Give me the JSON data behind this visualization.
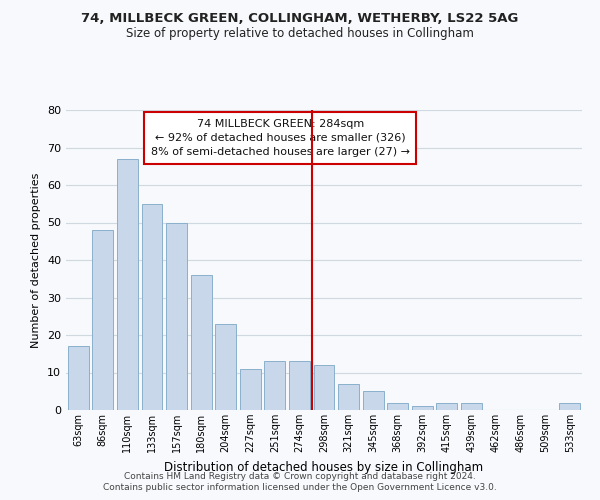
{
  "title1": "74, MILLBECK GREEN, COLLINGHAM, WETHERBY, LS22 5AG",
  "title2": "Size of property relative to detached houses in Collingham",
  "xlabel": "Distribution of detached houses by size in Collingham",
  "ylabel": "Number of detached properties",
  "bar_labels": [
    "63sqm",
    "86sqm",
    "110sqm",
    "133sqm",
    "157sqm",
    "180sqm",
    "204sqm",
    "227sqm",
    "251sqm",
    "274sqm",
    "298sqm",
    "321sqm",
    "345sqm",
    "368sqm",
    "392sqm",
    "415sqm",
    "439sqm",
    "462sqm",
    "486sqm",
    "509sqm",
    "533sqm"
  ],
  "bar_values": [
    17,
    48,
    67,
    55,
    50,
    36,
    23,
    11,
    13,
    13,
    12,
    7,
    5,
    2,
    1,
    2,
    2,
    0,
    0,
    0,
    2
  ],
  "bar_color": "#c8d8ea",
  "bar_edge_color": "#8ab0cc",
  "ref_line_x_label": "298sqm",
  "ref_line_color": "#cc0000",
  "annotation_title": "74 MILLBECK GREEN: 284sqm",
  "annotation_line1": "← 92% of detached houses are smaller (326)",
  "annotation_line2": "8% of semi-detached houses are larger (27) →",
  "annotation_box_color": "#ffffff",
  "annotation_box_edge": "#cc0000",
  "ylim": [
    0,
    80
  ],
  "yticks": [
    0,
    10,
    20,
    30,
    40,
    50,
    60,
    70,
    80
  ],
  "footer1": "Contains HM Land Registry data © Crown copyright and database right 2024.",
  "footer2": "Contains public sector information licensed under the Open Government Licence v3.0.",
  "background_color": "#f7f9fc",
  "grid_color": "#d0d8e0"
}
